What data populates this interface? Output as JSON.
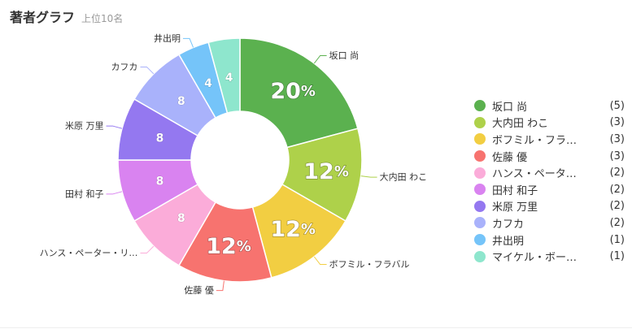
{
  "header": {
    "title": "著者グラフ",
    "subtitle": "上位10名"
  },
  "chart_data": {
    "type": "pie",
    "donut": true,
    "legend_position": "right",
    "slices": [
      {
        "label": "坂口 尚",
        "outer_label": "坂口 尚",
        "legend_label": "坂口 尚",
        "value": 5,
        "inner_text": "20%",
        "color": "#5bb14f"
      },
      {
        "label": "大内田 わこ",
        "outer_label": "大内田 わこ",
        "legend_label": "大内田 わこ",
        "value": 3,
        "inner_text": "12%",
        "color": "#aed14a"
      },
      {
        "label": "ボフミル・フラバル",
        "outer_label": "ボフミル・フラバル",
        "legend_label": "ボフミル・フラ…",
        "value": 3,
        "inner_text": "12%",
        "color": "#f2ce42"
      },
      {
        "label": "佐藤 優",
        "outer_label": "佐藤 優",
        "legend_label": "佐藤 優",
        "value": 3,
        "inner_text": "12%",
        "color": "#f7736f"
      },
      {
        "label": "ハンス・ペーター・リ…",
        "outer_label": "ハンス・ペーター・リ…",
        "legend_label": "ハンス・ペータ…",
        "value": 2,
        "inner_text": "8",
        "color": "#fbacd9"
      },
      {
        "label": "田村 和子",
        "outer_label": "田村 和子",
        "legend_label": "田村 和子",
        "value": 2,
        "inner_text": "8",
        "color": "#d983f0"
      },
      {
        "label": "米原 万里",
        "outer_label": "米原 万里",
        "legend_label": "米原 万里",
        "value": 2,
        "inner_text": "8",
        "color": "#9478f0"
      },
      {
        "label": "カフカ",
        "outer_label": "カフカ",
        "legend_label": "カフカ",
        "value": 2,
        "inner_text": "8",
        "color": "#a9b2fb"
      },
      {
        "label": "井出明",
        "outer_label": "井出明",
        "legend_label": "井出明",
        "value": 1,
        "inner_text": "4",
        "color": "#75c4f9"
      },
      {
        "label": "マイケル・ボー…",
        "outer_label": "",
        "legend_label": "マイケル・ボー…",
        "value": 1,
        "inner_text": "4",
        "color": "#8ee6cd"
      }
    ],
    "legend_counts": [
      "(5)",
      "(3)",
      "(3)",
      "(3)",
      "(2)",
      "(2)",
      "(2)",
      "(2)",
      "(1)",
      "(1)"
    ]
  }
}
